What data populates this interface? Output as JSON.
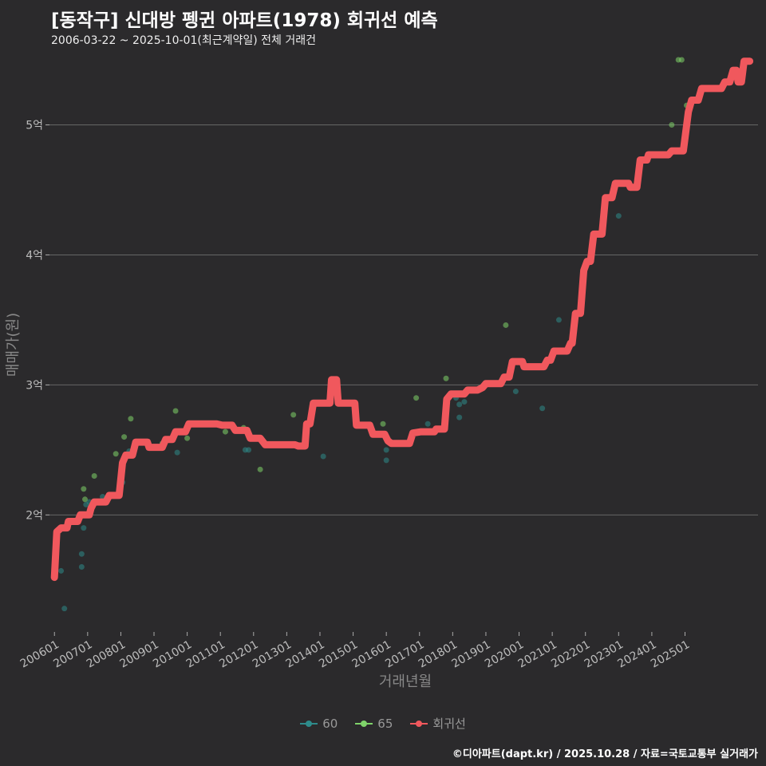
{
  "header": {
    "title": "[동작구] 신대방 펭귄 아파트(1978) 회귀선 예측",
    "subtitle": "2006-03-22 ~ 2025-10-01(최근계약일) 전체 거래건"
  },
  "footer": {
    "credit": "©디아파트(dapt.kr) / 2025.10.28 / 자료=국토교통부 실거래가"
  },
  "colors": {
    "background": "#2b2a2c",
    "grid": "#666666",
    "series60": "#2e8b8b",
    "series65": "#7fd36a",
    "regression": "#f0585d"
  },
  "legend": [
    {
      "label": "60",
      "color": "#2e8b8b"
    },
    {
      "label": "65",
      "color": "#7fd36a"
    },
    {
      "label": "회귀선",
      "color": "#f0585d"
    }
  ],
  "chart_data": {
    "type": "scatter",
    "title": "[동작구] 신대방 펭귄 아파트(1978) 회귀선 예측",
    "xlabel": "거래년월",
    "ylabel": "매매가(원)",
    "xlim": [
      2005.85,
      2027.2
    ],
    "ylim": [
      1.1,
      5.58
    ],
    "x_ticks": [
      {
        "x": 2006.0,
        "label": "200601"
      },
      {
        "x": 2007.0,
        "label": "200701"
      },
      {
        "x": 2008.0,
        "label": "200801"
      },
      {
        "x": 2009.0,
        "label": "200901"
      },
      {
        "x": 2010.0,
        "label": "201001"
      },
      {
        "x": 2011.0,
        "label": "201101"
      },
      {
        "x": 2012.0,
        "label": "201201"
      },
      {
        "x": 2013.0,
        "label": "201301"
      },
      {
        "x": 2014.0,
        "label": "201401"
      },
      {
        "x": 2015.0,
        "label": "201501"
      },
      {
        "x": 2016.0,
        "label": "201601"
      },
      {
        "x": 2017.0,
        "label": "201701"
      },
      {
        "x": 2018.0,
        "label": "201801"
      },
      {
        "x": 2019.0,
        "label": "201901"
      },
      {
        "x": 2020.0,
        "label": "202001"
      },
      {
        "x": 2021.0,
        "label": "202101"
      },
      {
        "x": 2022.0,
        "label": "202201"
      },
      {
        "x": 2023.0,
        "label": "202301"
      },
      {
        "x": 2024.0,
        "label": "202401"
      },
      {
        "x": 2025.0,
        "label": "202501"
      }
    ],
    "y_ticks": [
      {
        "y": 2,
        "label": "2억"
      },
      {
        "y": 3,
        "label": "3억"
      },
      {
        "y": 4,
        "label": "4억"
      },
      {
        "y": 5,
        "label": "5억"
      }
    ],
    "grid": true,
    "legend_position": "bottom",
    "series": [
      {
        "name": "60",
        "points": [
          [
            2006.2,
            1.57
          ],
          [
            2006.3,
            1.28
          ],
          [
            2006.82,
            1.6
          ],
          [
            2006.82,
            1.7
          ],
          [
            2006.88,
            1.9
          ],
          [
            2006.95,
            2.08
          ],
          [
            2007.05,
            2.1
          ],
          [
            2007.45,
            2.14
          ],
          [
            2008.05,
            2.25
          ],
          [
            2008.25,
            2.49
          ],
          [
            2009.7,
            2.48
          ],
          [
            2011.75,
            2.5
          ],
          [
            2011.85,
            2.5
          ],
          [
            2014.1,
            2.45
          ],
          [
            2016.0,
            2.42
          ],
          [
            2016.0,
            2.5
          ],
          [
            2017.25,
            2.7
          ],
          [
            2018.1,
            2.9
          ],
          [
            2018.2,
            2.85
          ],
          [
            2018.2,
            2.75
          ],
          [
            2018.35,
            2.87
          ],
          [
            2019.9,
            2.95
          ],
          [
            2020.7,
            2.82
          ],
          [
            2021.2,
            3.5
          ],
          [
            2023.0,
            4.3
          ]
        ]
      },
      {
        "name": "65",
        "points": [
          [
            2006.88,
            2.2
          ],
          [
            2006.92,
            2.12
          ],
          [
            2007.2,
            2.3
          ],
          [
            2007.85,
            2.47
          ],
          [
            2008.1,
            2.6
          ],
          [
            2008.3,
            2.74
          ],
          [
            2009.25,
            2.55
          ],
          [
            2009.65,
            2.8
          ],
          [
            2010.0,
            2.59
          ],
          [
            2011.15,
            2.64
          ],
          [
            2011.7,
            2.67
          ],
          [
            2012.2,
            2.35
          ],
          [
            2013.2,
            2.77
          ],
          [
            2015.9,
            2.7
          ],
          [
            2016.9,
            2.9
          ],
          [
            2017.8,
            3.05
          ],
          [
            2019.6,
            3.46
          ],
          [
            2024.6,
            5.0
          ],
          [
            2024.8,
            5.5
          ],
          [
            2024.9,
            5.5
          ],
          [
            2025.05,
            5.15
          ]
        ]
      }
    ],
    "regression": [
      [
        2006.0,
        1.52
      ],
      [
        2006.07,
        1.87
      ],
      [
        2006.2,
        1.9
      ],
      [
        2006.38,
        1.9
      ],
      [
        2006.42,
        1.95
      ],
      [
        2006.7,
        1.95
      ],
      [
        2006.78,
        2.0
      ],
      [
        2007.05,
        2.0
      ],
      [
        2007.1,
        2.05
      ],
      [
        2007.2,
        2.1
      ],
      [
        2007.55,
        2.1
      ],
      [
        2007.65,
        2.15
      ],
      [
        2007.95,
        2.15
      ],
      [
        2008.05,
        2.4
      ],
      [
        2008.15,
        2.46
      ],
      [
        2008.35,
        2.46
      ],
      [
        2008.45,
        2.56
      ],
      [
        2008.8,
        2.56
      ],
      [
        2008.85,
        2.52
      ],
      [
        2009.25,
        2.52
      ],
      [
        2009.35,
        2.58
      ],
      [
        2009.55,
        2.58
      ],
      [
        2009.65,
        2.64
      ],
      [
        2009.95,
        2.64
      ],
      [
        2010.05,
        2.7
      ],
      [
        2010.9,
        2.7
      ],
      [
        2011.05,
        2.69
      ],
      [
        2011.35,
        2.69
      ],
      [
        2011.45,
        2.65
      ],
      [
        2011.8,
        2.65
      ],
      [
        2011.9,
        2.59
      ],
      [
        2012.2,
        2.59
      ],
      [
        2012.35,
        2.54
      ],
      [
        2013.25,
        2.54
      ],
      [
        2013.35,
        2.53
      ],
      [
        2013.55,
        2.53
      ],
      [
        2013.6,
        2.7
      ],
      [
        2013.7,
        2.7
      ],
      [
        2013.8,
        2.86
      ],
      [
        2014.3,
        2.86
      ],
      [
        2014.35,
        3.04
      ],
      [
        2014.5,
        3.04
      ],
      [
        2014.55,
        2.86
      ],
      [
        2015.05,
        2.86
      ],
      [
        2015.1,
        2.69
      ],
      [
        2015.5,
        2.69
      ],
      [
        2015.6,
        2.62
      ],
      [
        2015.95,
        2.62
      ],
      [
        2016.05,
        2.57
      ],
      [
        2016.15,
        2.55
      ],
      [
        2016.7,
        2.55
      ],
      [
        2016.8,
        2.63
      ],
      [
        2017.05,
        2.64
      ],
      [
        2017.45,
        2.64
      ],
      [
        2017.5,
        2.66
      ],
      [
        2017.75,
        2.66
      ],
      [
        2017.82,
        2.89
      ],
      [
        2017.95,
        2.93
      ],
      [
        2018.35,
        2.93
      ],
      [
        2018.45,
        2.96
      ],
      [
        2018.75,
        2.96
      ],
      [
        2018.9,
        2.98
      ],
      [
        2019.0,
        3.01
      ],
      [
        2019.45,
        3.01
      ],
      [
        2019.55,
        3.06
      ],
      [
        2019.7,
        3.06
      ],
      [
        2019.8,
        3.18
      ],
      [
        2020.1,
        3.18
      ],
      [
        2020.15,
        3.14
      ],
      [
        2020.75,
        3.14
      ],
      [
        2020.85,
        3.19
      ],
      [
        2020.95,
        3.19
      ],
      [
        2021.05,
        3.26
      ],
      [
        2021.45,
        3.26
      ],
      [
        2021.55,
        3.32
      ],
      [
        2021.6,
        3.32
      ],
      [
        2021.7,
        3.55
      ],
      [
        2021.85,
        3.55
      ],
      [
        2021.95,
        3.88
      ],
      [
        2022.05,
        3.95
      ],
      [
        2022.15,
        3.95
      ],
      [
        2022.25,
        4.16
      ],
      [
        2022.5,
        4.16
      ],
      [
        2022.6,
        4.44
      ],
      [
        2022.8,
        4.44
      ],
      [
        2022.9,
        4.55
      ],
      [
        2023.3,
        4.55
      ],
      [
        2023.35,
        4.52
      ],
      [
        2023.55,
        4.52
      ],
      [
        2023.65,
        4.73
      ],
      [
        2023.85,
        4.73
      ],
      [
        2023.9,
        4.77
      ],
      [
        2024.5,
        4.77
      ],
      [
        2024.6,
        4.8
      ],
      [
        2024.95,
        4.8
      ],
      [
        2025.1,
        5.1
      ],
      [
        2025.2,
        5.19
      ],
      [
        2025.4,
        5.19
      ],
      [
        2025.5,
        5.28
      ],
      [
        2026.1,
        5.28
      ],
      [
        2026.2,
        5.33
      ],
      [
        2026.35,
        5.33
      ],
      [
        2026.45,
        5.42
      ],
      [
        2026.55,
        5.42
      ],
      [
        2026.6,
        5.33
      ],
      [
        2026.7,
        5.33
      ],
      [
        2026.78,
        5.49
      ],
      [
        2026.95,
        5.49
      ]
    ]
  }
}
